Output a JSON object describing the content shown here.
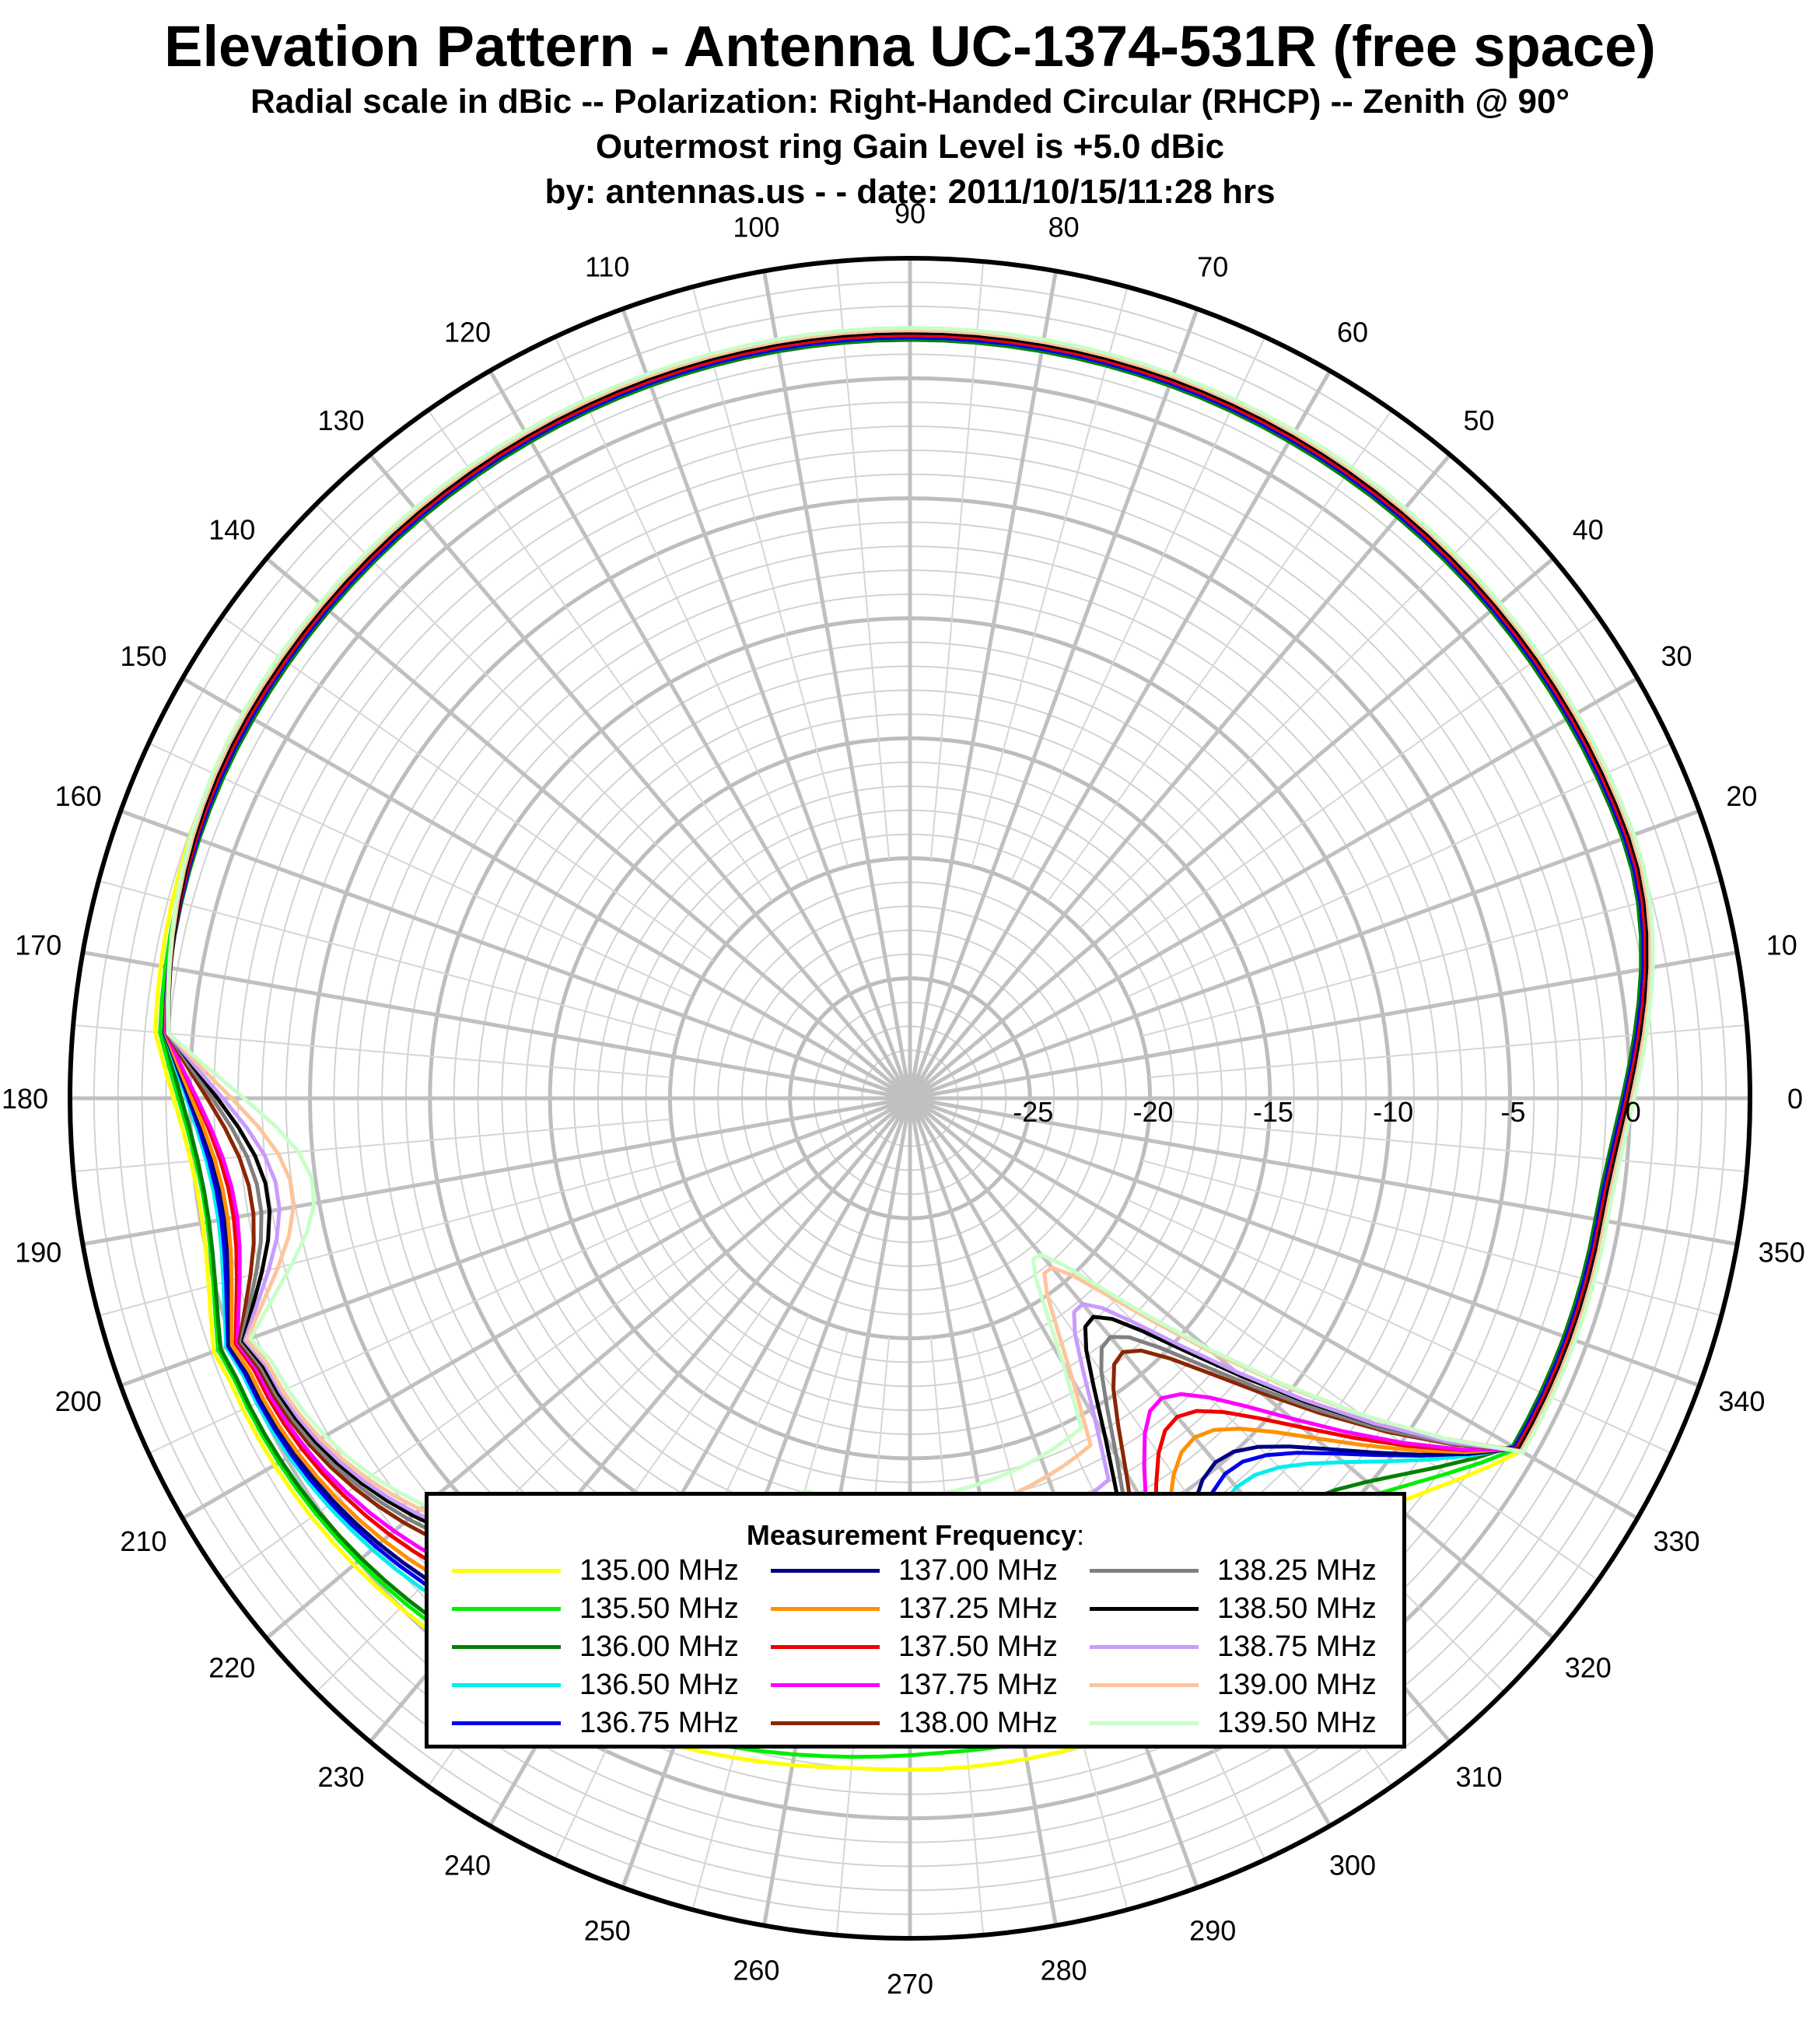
{
  "header": {
    "title": "Elevation Pattern - Antenna UC-1374-531R (free space)",
    "subtitle_lines": [
      "Radial scale in dBic -- Polarization: Right-Handed Circular (RHCP) -- Zenith @ 90°",
      "Outermost ring Gain Level is +5.0 dBic",
      "by: antennas.us  - -  date: 2011/10/15/11:28 hrs"
    ]
  },
  "legend": {
    "title": "Measurement Frequency",
    "title_suffix": ":",
    "placement": "bottom-center"
  },
  "chart_data": {
    "type": "polar-line",
    "title": "Elevation Pattern - Antenna UC-1374-531R (free space)",
    "radial_unit": "dBic",
    "radial_range": [
      -30,
      5
    ],
    "radial_tick_labels": [
      "-25",
      "-20",
      "-15",
      "-10",
      "-5",
      "0"
    ],
    "radial_tick_values": [
      -25,
      -20,
      -15,
      -10,
      -5,
      0
    ],
    "angle_tick_labels": [
      "0",
      "10",
      "20",
      "30",
      "40",
      "50",
      "60",
      "70",
      "80",
      "90",
      "100",
      "110",
      "120",
      "130",
      "140",
      "150",
      "160",
      "170",
      "180",
      "190",
      "200",
      "210",
      "220",
      "230",
      "240",
      "250",
      "260",
      "270",
      "280",
      "290",
      "300",
      "310",
      "320",
      "330",
      "340",
      "350"
    ],
    "minor_ring_step_db": 1,
    "major_ring_step_db": 5,
    "minor_spoke_step_deg": 5,
    "major_spoke_step_deg": 10,
    "grid": true,
    "series": [
      {
        "name": "135.00 MHz",
        "color": "#ffff00",
        "deep_null": 6.0,
        "front_level": 2.0,
        "back_level": 0.7,
        "mid_gain": -2.3,
        "lobe": -2.0,
        "kink": 0.0
      },
      {
        "name": "135.50 MHz",
        "color": "#00ee00",
        "deep_null": 7.0,
        "front_level": 1.8,
        "back_level": 0.5,
        "mid_gain": -2.8,
        "lobe": -2.7,
        "kink": 0.0
      },
      {
        "name": "136.00 MHz",
        "color": "#008000",
        "deep_null": 8.0,
        "front_level": 1.6,
        "back_level": 0.4,
        "mid_gain": -3.3,
        "lobe": -3.3,
        "kink": 0.0
      },
      {
        "name": "136.50 MHz",
        "color": "#00eeee",
        "deep_null": 10.0,
        "front_level": 1.7,
        "back_level": 0.1,
        "mid_gain": -5.5,
        "lobe": -4.5,
        "kink": 0.0
      },
      {
        "name": "136.75 MHz",
        "color": "#0000ee",
        "deep_null": 11.0,
        "front_level": 1.7,
        "back_level": 0.0,
        "mid_gain": -6.2,
        "lobe": -4.3,
        "kink": 0.0
      },
      {
        "name": "137.00 MHz",
        "color": "#000080",
        "deep_null": 11.5,
        "front_level": 1.8,
        "back_level": -0.1,
        "mid_gain": -6.8,
        "lobe": -4.9,
        "kink": 0.0
      },
      {
        "name": "137.25 MHz",
        "color": "#ff9000",
        "deep_null": 12.5,
        "front_level": 1.8,
        "back_level": -0.2,
        "mid_gain": -7.8,
        "lobe": -6.5,
        "kink": 0.0
      },
      {
        "name": "137.50 MHz",
        "color": "#ee0000",
        "deep_null": 13.5,
        "front_level": 1.8,
        "back_level": -0.4,
        "mid_gain": -9.0,
        "lobe": -7.0,
        "kink": 0.0
      },
      {
        "name": "137.75 MHz",
        "color": "#ff00ff",
        "deep_null": 14.5,
        "front_level": 1.9,
        "back_level": -0.5,
        "mid_gain": -10.0,
        "lobe": -7.5,
        "kink": 0.0
      },
      {
        "name": "138.00 MHz",
        "color": "#8b2500",
        "deep_null": 17.0,
        "front_level": 1.9,
        "back_level": -0.6,
        "mid_gain": -13.0,
        "lobe": -7.7,
        "kink": 0.3
      },
      {
        "name": "138.25 MHz",
        "color": "#808080",
        "deep_null": 17.5,
        "front_level": 1.9,
        "back_level": -0.7,
        "mid_gain": -14.0,
        "lobe": -8.3,
        "kink": 0.4
      },
      {
        "name": "138.50 MHz",
        "color": "#000000",
        "deep_null": 18.5,
        "front_level": 1.9,
        "back_level": -0.8,
        "mid_gain": -15.0,
        "lobe": -9.0,
        "kink": 0.5
      },
      {
        "name": "138.75 MHz",
        "color": "#c89bff",
        "deep_null": 19.0,
        "front_level": 2.0,
        "back_level": -0.9,
        "mid_gain": -15.5,
        "lobe": -10.0,
        "kink": 0.6
      },
      {
        "name": "139.00 MHz",
        "color": "#ffc49b",
        "deep_null": 21.0,
        "front_level": 2.0,
        "back_level": -1.0,
        "mid_gain": -16.5,
        "lobe": -12.0,
        "kink": 0.8
      },
      {
        "name": "139.50 MHz",
        "color": "#c8ffc8",
        "deep_null": 21.5,
        "front_level": 2.1,
        "back_level": -1.2,
        "mid_gain": -17.0,
        "lobe": -13.0,
        "kink": 1.0
      }
    ]
  }
}
